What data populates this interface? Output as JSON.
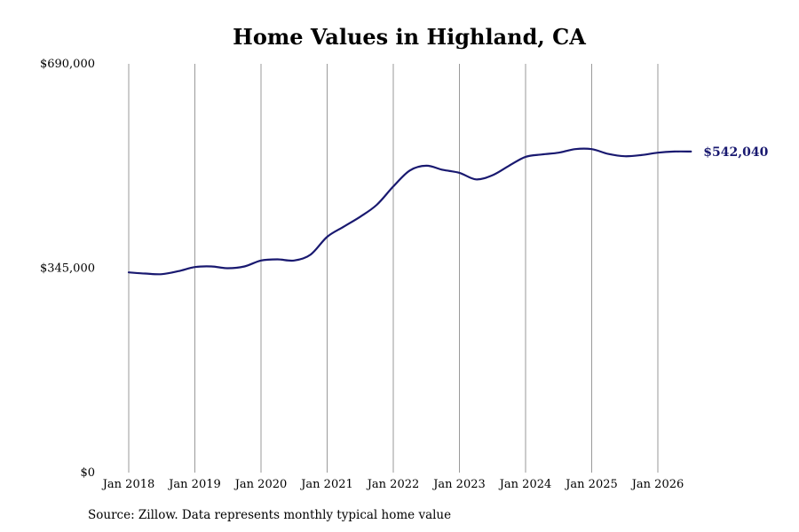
{
  "chart_data": {
    "type": "line",
    "title": "Home Values in Highland, CA",
    "source": "Source: Zillow. Data represents monthly typical home value",
    "xlabel": "",
    "ylabel": "",
    "ylim": [
      0,
      690000
    ],
    "yticks": [
      0,
      345000,
      690000
    ],
    "ytick_labels": [
      "$0",
      "$345,000",
      "$690,000"
    ],
    "xticks": [
      "2018-01",
      "2019-01",
      "2020-01",
      "2021-01",
      "2022-01",
      "2023-01",
      "2024-01",
      "2025-01",
      "2026-01"
    ],
    "xtick_labels": [
      "Jan 2018",
      "Jan 2019",
      "Jan 2020",
      "Jan 2021",
      "Jan 2022",
      "Jan 2023",
      "Jan 2024",
      "Jan 2025",
      "Jan 2026"
    ],
    "xlim": [
      "2018-01",
      "2026-07"
    ],
    "grid": "vertical",
    "line_color": "#191970",
    "last_value_label": "$542,040",
    "series": [
      {
        "points": [
          [
            "2018-01",
            338000
          ],
          [
            "2018-04",
            336000
          ],
          [
            "2018-07",
            335000
          ],
          [
            "2018-10",
            340000
          ],
          [
            "2019-01",
            347000
          ],
          [
            "2019-04",
            348000
          ],
          [
            "2019-07",
            345000
          ],
          [
            "2019-10",
            348000
          ],
          [
            "2020-01",
            358000
          ],
          [
            "2020-04",
            360000
          ],
          [
            "2020-07",
            358000
          ],
          [
            "2020-10",
            368000
          ],
          [
            "2021-01",
            398000
          ],
          [
            "2021-04",
            415000
          ],
          [
            "2021-07",
            432000
          ],
          [
            "2021-10",
            452000
          ],
          [
            "2022-01",
            483000
          ],
          [
            "2022-04",
            510000
          ],
          [
            "2022-07",
            518000
          ],
          [
            "2022-10",
            511000
          ],
          [
            "2023-01",
            506000
          ],
          [
            "2023-04",
            495000
          ],
          [
            "2023-07",
            502000
          ],
          [
            "2023-10",
            518000
          ],
          [
            "2024-01",
            533000
          ],
          [
            "2024-04",
            537000
          ],
          [
            "2024-07",
            540000
          ],
          [
            "2024-10",
            546000
          ],
          [
            "2025-01",
            546000
          ],
          [
            "2025-04",
            538000
          ],
          [
            "2025-07",
            534000
          ],
          [
            "2025-10",
            536000
          ],
          [
            "2026-01",
            540000
          ],
          [
            "2026-04",
            542000
          ],
          [
            "2026-07",
            542040
          ]
        ]
      }
    ]
  }
}
